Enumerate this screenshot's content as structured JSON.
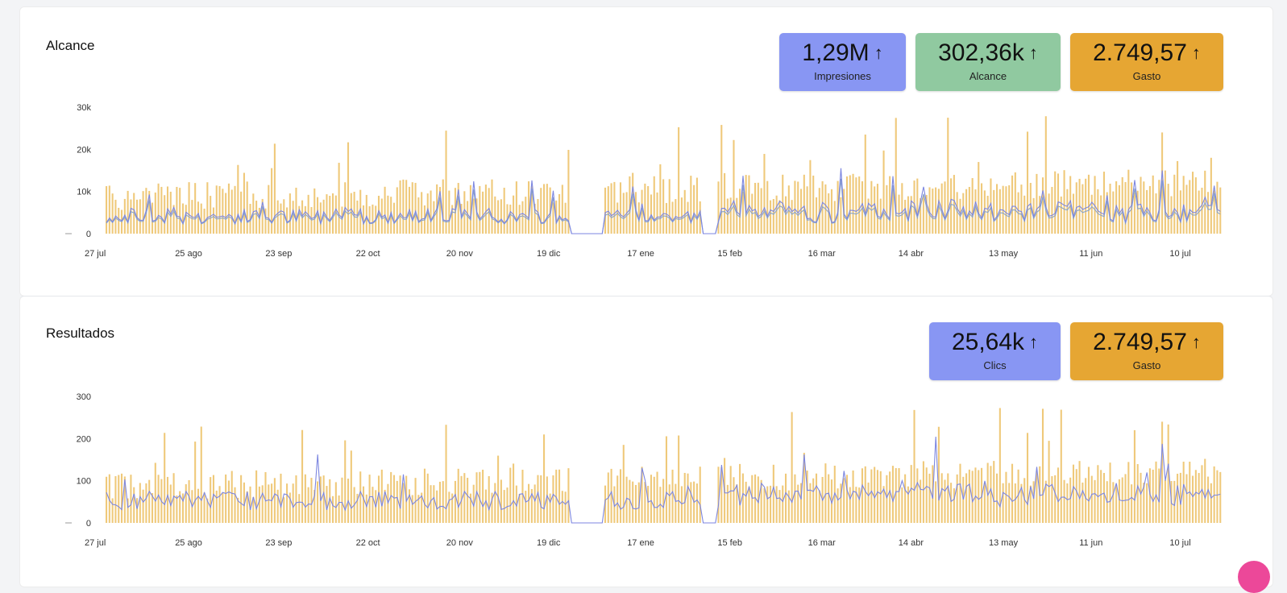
{
  "colors": {
    "bar": "#efc97a",
    "line1": "#7c86e0",
    "line2": "#8aa3c9",
    "impressions": "#8896f3",
    "reach": "#90c9a0",
    "spend": "#e6a633"
  },
  "x_ticks": [
    "27 jul",
    "25 ago",
    "23 sep",
    "22 oct",
    "20 nov",
    "19 dic",
    "17 ene",
    "15 feb",
    "16 mar",
    "14 abr",
    "13 may",
    "11 jun",
    "10 jul"
  ],
  "sections": [
    {
      "title": "Alcance",
      "stats": [
        {
          "value": "1,29M",
          "label": "Impresiones",
          "arrow": "↑",
          "color": "impressions"
        },
        {
          "value": "302,36k",
          "label": "Alcance",
          "arrow": "↑",
          "color": "reach"
        },
        {
          "value": "2.749,57",
          "label": "Gasto",
          "arrow": "↑",
          "color": "spend"
        }
      ],
      "y_ticks": [
        "0",
        "10k",
        "20k",
        "30k"
      ]
    },
    {
      "title": "Resultados",
      "stats": [
        {
          "value": "25,64k",
          "label": "Clics",
          "arrow": "↑",
          "color": "impressions"
        },
        {
          "value": "2.749,57",
          "label": "Gasto",
          "arrow": "↑",
          "color": "spend"
        }
      ],
      "y_ticks": [
        "0",
        "100",
        "200",
        "300"
      ]
    }
  ],
  "chart_data": [
    {
      "type": "bar",
      "title": "Alcance",
      "ylim": [
        0,
        30000
      ],
      "x_tick_labels": [
        "27 jul",
        "25 ago",
        "23 sep",
        "22 oct",
        "20 nov",
        "19 dic",
        "17 ene",
        "15 feb",
        "16 mar",
        "14 abr",
        "13 may",
        "11 jun",
        "10 jul"
      ],
      "y_tick_labels": [
        "0",
        "10k",
        "20k",
        "30k"
      ],
      "daily_points": 365,
      "series": [
        {
          "kind": "bar",
          "approx_range": [
            3000,
            24000
          ]
        },
        {
          "kind": "line",
          "approx_range": [
            0,
            15000
          ]
        },
        {
          "kind": "line",
          "approx_range": [
            0,
            12000
          ]
        }
      ],
      "gaps": [
        "~26 dic – 5 ene",
        "~7 feb – 11 feb"
      ]
    },
    {
      "type": "bar",
      "title": "Resultados",
      "ylim": [
        0,
        300
      ],
      "x_tick_labels": [
        "27 jul",
        "25 ago",
        "23 sep",
        "22 oct",
        "20 nov",
        "19 dic",
        "17 ene",
        "15 feb",
        "16 mar",
        "14 abr",
        "13 may",
        "11 jun",
        "10 jul"
      ],
      "y_tick_labels": [
        "0",
        "100",
        "200",
        "300"
      ],
      "daily_points": 365,
      "series": [
        {
          "kind": "bar",
          "approx_range": [
            40,
            240
          ]
        },
        {
          "kind": "line",
          "approx_range": [
            0,
            220
          ]
        }
      ],
      "gaps": [
        "~26 dic – 5 ene",
        "~7 feb – 11 feb"
      ]
    }
  ]
}
